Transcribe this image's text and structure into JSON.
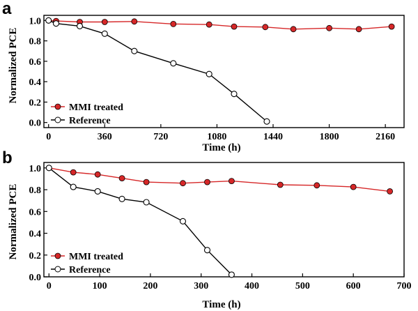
{
  "chart_data": [
    {
      "panel": "a",
      "type": "line",
      "xlabel": "Time (h)",
      "ylabel": "Normalized PCE",
      "xlim": [
        -30,
        2280
      ],
      "ylim": [
        -0.05,
        1.05
      ],
      "xticks": [
        0,
        360,
        720,
        1080,
        1440,
        1800,
        2160
      ],
      "yticks": [
        0.0,
        0.2,
        0.4,
        0.6,
        0.8,
        1.0
      ],
      "legend_position": "bottom-left",
      "grid": false,
      "series": [
        {
          "name": "MMI treated",
          "color": "#d62728",
          "x": [
            0,
            48,
            200,
            360,
            550,
            800,
            1030,
            1190,
            1390,
            1570,
            1800,
            1990,
            2200
          ],
          "y": [
            1.0,
            0.995,
            0.985,
            0.985,
            0.99,
            0.965,
            0.96,
            0.94,
            0.935,
            0.915,
            0.925,
            0.915,
            0.94
          ]
        },
        {
          "name": "Reference",
          "color": "#000000",
          "x": [
            0,
            48,
            200,
            360,
            550,
            800,
            1030,
            1190,
            1400
          ],
          "y": [
            1.0,
            0.97,
            0.945,
            0.87,
            0.7,
            0.58,
            0.475,
            0.28,
            0.01
          ]
        }
      ]
    },
    {
      "panel": "b",
      "type": "line",
      "xlabel": "Time (h)",
      "ylabel": "Normalized PCE",
      "xlim": [
        -10,
        700
      ],
      "ylim": [
        0.0,
        1.05
      ],
      "xticks": [
        0,
        100,
        200,
        300,
        400,
        500,
        600,
        700
      ],
      "yticks": [
        0.0,
        0.2,
        0.4,
        0.6,
        0.8,
        1.0
      ],
      "legend_position": "bottom-left",
      "grid": false,
      "series": [
        {
          "name": "MMI treated",
          "color": "#d62728",
          "x": [
            0,
            48,
            96,
            144,
            192,
            264,
            312,
            360,
            456,
            528,
            600,
            672
          ],
          "y": [
            1.0,
            0.96,
            0.94,
            0.905,
            0.87,
            0.86,
            0.87,
            0.88,
            0.845,
            0.84,
            0.825,
            0.785
          ]
        },
        {
          "name": "Reference",
          "color": "#000000",
          "x": [
            0,
            48,
            96,
            144,
            192,
            264,
            312,
            360
          ],
          "y": [
            1.0,
            0.825,
            0.785,
            0.715,
            0.685,
            0.51,
            0.245,
            0.02
          ]
        }
      ]
    }
  ]
}
